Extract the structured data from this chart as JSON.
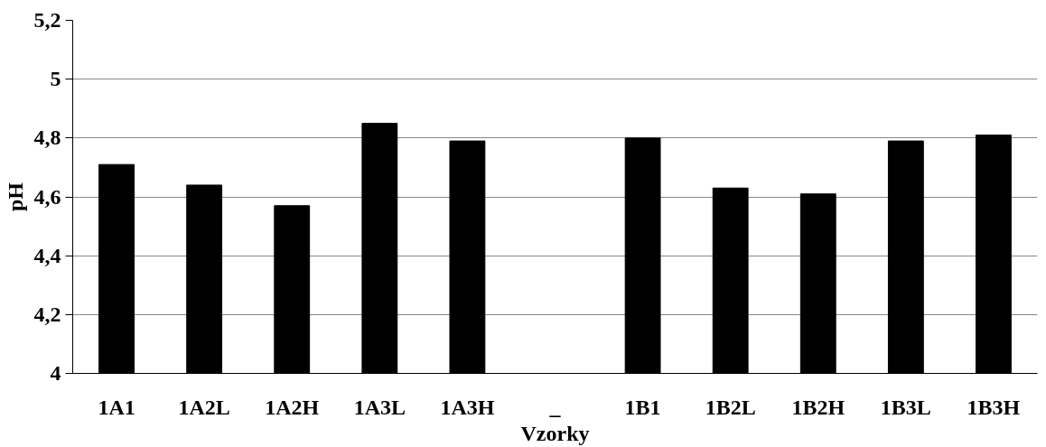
{
  "chart_data": {
    "type": "bar",
    "xlabel": "Vzorky",
    "ylabel": "pH",
    "categories": [
      "1A1",
      "1A2L",
      "1A2H",
      "1A3L",
      "1A3H",
      "_",
      "1B1",
      "1B2L",
      "1B2H",
      "1B3L",
      "1B3H"
    ],
    "values": [
      4.71,
      4.64,
      4.57,
      4.85,
      4.79,
      null,
      4.8,
      4.63,
      4.61,
      4.79,
      4.81
    ],
    "color": "#000000",
    "ylim": [
      4,
      5.2
    ],
    "yticks": [
      4,
      {
        "value": 4.2,
        "label": "4,2"
      },
      {
        "value": 4.4,
        "label": "4,4"
      },
      {
        "value": 4.6,
        "label": "4,6"
      },
      {
        "value": 4.8,
        "label": "4,8"
      },
      5,
      {
        "value": 5.2,
        "label": "5,2"
      }
    ],
    "grid": "y"
  }
}
